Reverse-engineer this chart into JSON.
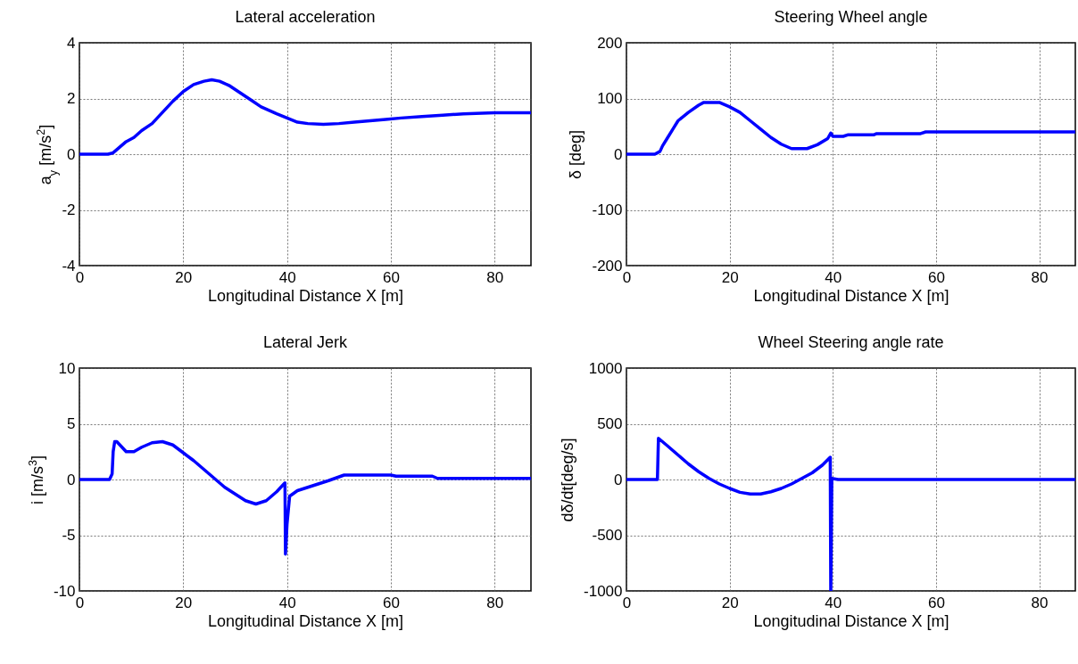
{
  "chart_data": [
    {
      "type": "line",
      "title": "Lateral acceleration",
      "xlabel": "Longitudinal Distance X [m]",
      "ylabel": "a$_{y}$ [m/s$^{2}$]",
      "xlim": [
        0,
        87
      ],
      "xticks": [
        0,
        20,
        40,
        60,
        80
      ],
      "ylim": [
        -4,
        4
      ],
      "yticks": [
        -4,
        -2,
        0,
        2,
        4
      ],
      "grid": true,
      "line_style": "solid",
      "series": [
        {
          "color": "#0000ff",
          "x": [
            0,
            5.5,
            6.5,
            9,
            10.5,
            12,
            14,
            16,
            18,
            20,
            22,
            24,
            25.5,
            27,
            29,
            31,
            33,
            35,
            38,
            40,
            42,
            44,
            47,
            50,
            53,
            56,
            59,
            62,
            66,
            70,
            74,
            80,
            87
          ],
          "values": [
            0,
            0,
            0.05,
            0.45,
            0.6,
            0.85,
            1.1,
            1.5,
            1.9,
            2.25,
            2.5,
            2.62,
            2.67,
            2.62,
            2.45,
            2.2,
            1.95,
            1.7,
            1.45,
            1.3,
            1.15,
            1.1,
            1.07,
            1.1,
            1.15,
            1.2,
            1.25,
            1.3,
            1.35,
            1.4,
            1.45,
            1.49,
            1.49
          ]
        }
      ]
    },
    {
      "type": "line",
      "title": "Steering Wheel angle",
      "xlabel": "Longitudinal Distance X [m]",
      "ylabel": "δ [deg]",
      "xlim": [
        0,
        87
      ],
      "xticks": [
        0,
        20,
        40,
        60,
        80
      ],
      "ylim": [
        -200,
        200
      ],
      "yticks": [
        -200,
        -100,
        0,
        100,
        200
      ],
      "grid": true,
      "line_style": "solid",
      "series": [
        {
          "color": "#0000ff",
          "x": [
            0,
            5.5,
            6.5,
            7,
            8,
            9,
            10,
            12,
            14,
            15,
            18,
            20,
            22,
            24,
            26,
            28,
            30,
            32,
            35,
            37,
            39,
            39.6,
            40,
            42,
            43,
            48,
            48.5,
            57,
            58,
            87
          ],
          "values": [
            0,
            0,
            5,
            15,
            30,
            45,
            60,
            75,
            88,
            93,
            93,
            85,
            75,
            60,
            45,
            30,
            18,
            10,
            10,
            17,
            28,
            38,
            32,
            32,
            35,
            35,
            37,
            37,
            40,
            40
          ]
        }
      ]
    },
    {
      "type": "line",
      "title": "Lateral Jerk",
      "xlabel": "Longitudinal Distance X [m]",
      "ylabel": "i [m/s$^{3}$]",
      "xlim": [
        0,
        87
      ],
      "xticks": [
        0,
        20,
        40,
        60,
        80
      ],
      "ylim": [
        -10,
        10
      ],
      "yticks": [
        -10,
        -5,
        0,
        5,
        10
      ],
      "grid": true,
      "line_style": "solid",
      "series": [
        {
          "color": "#0000ff",
          "x": [
            0,
            5.8,
            6.3,
            6.5,
            6.8,
            7.2,
            9,
            10.5,
            12,
            14,
            16,
            18,
            20,
            22,
            24,
            26,
            28,
            30,
            32,
            34,
            36,
            38,
            39.6,
            39.7,
            40,
            40.5,
            42,
            44,
            46,
            48,
            51,
            60,
            61,
            68,
            69,
            87
          ],
          "values": [
            0,
            0,
            0.5,
            2.5,
            3.4,
            3.4,
            2.5,
            2.5,
            2.9,
            3.3,
            3.4,
            3.1,
            2.4,
            1.7,
            0.9,
            0.1,
            -0.7,
            -1.3,
            -1.9,
            -2.2,
            -1.9,
            -1.1,
            -0.3,
            -6.7,
            -4,
            -1.5,
            -1,
            -0.7,
            -0.4,
            -0.1,
            0.4,
            0.4,
            0.3,
            0.3,
            0.1,
            0.1
          ]
        }
      ]
    },
    {
      "type": "line",
      "title": "Wheel Steering angle rate",
      "xlabel": "Longitudinal Distance X [m]",
      "ylabel": "dδ/dt[deg/s]",
      "xlim": [
        0,
        87
      ],
      "xticks": [
        0,
        20,
        40,
        60,
        80
      ],
      "ylim": [
        -1000,
        1000
      ],
      "yticks": [
        -1000,
        -500,
        0,
        500,
        1000
      ],
      "grid": true,
      "line_style": "solid",
      "series": [
        {
          "color": "#0000ff",
          "x": [
            0,
            6,
            6.2,
            8,
            10,
            12,
            14,
            16,
            18,
            20,
            22,
            24,
            26,
            28,
            30,
            32,
            34,
            36,
            38,
            39.5,
            39.6,
            39.8,
            41,
            87
          ],
          "values": [
            0,
            0,
            370,
            300,
            220,
            140,
            70,
            10,
            -40,
            -80,
            -115,
            -130,
            -130,
            -110,
            -80,
            -40,
            10,
            60,
            130,
            200,
            -1000,
            10,
            0,
            0
          ]
        }
      ]
    }
  ]
}
